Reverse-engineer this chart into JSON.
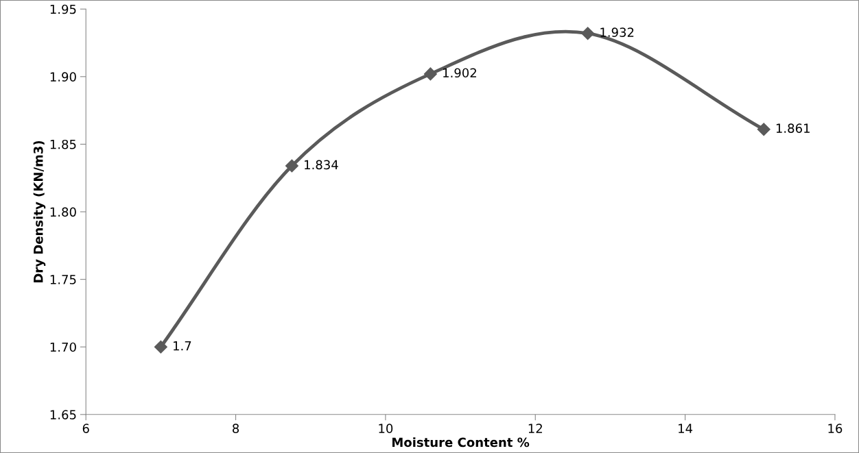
{
  "chart_data": {
    "type": "line",
    "xlabel": "Moisture Content %",
    "ylabel": "Dry Density (KN/m3)",
    "x": [
      7.0,
      8.75,
      10.6,
      12.7,
      15.05
    ],
    "series": [
      {
        "color": "#5a5a5a",
        "values": [
          1.7,
          1.834,
          1.902,
          1.932,
          1.861
        ]
      }
    ],
    "xlim": [
      6,
      16
    ],
    "xticks": [
      6,
      8,
      10,
      12,
      14,
      16
    ],
    "ylim": [
      1.65,
      1.95
    ],
    "yticks": [
      {
        "value": 1.65,
        "label": "1.65"
      },
      {
        "value": 1.7,
        "label": "1.70"
      },
      {
        "value": 1.75,
        "label": "1.75"
      },
      {
        "value": 1.8,
        "label": "1.80"
      },
      {
        "value": 1.85,
        "label": "1.85"
      },
      {
        "value": 1.9,
        "label": "1.90"
      },
      {
        "value": 1.95,
        "label": "1.95"
      }
    ],
    "marker": "diamond",
    "line_style": "solid",
    "data_labels": true,
    "grid": false,
    "legend": false
  }
}
